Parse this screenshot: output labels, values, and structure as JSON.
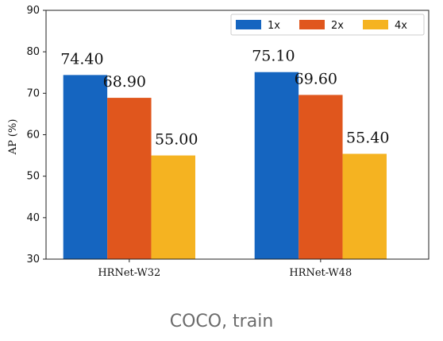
{
  "chart_data": {
    "type": "bar",
    "categories": [
      "HRNet-W32",
      "HRNet-W48"
    ],
    "series": [
      {
        "name": "1x",
        "values": [
          74.4,
          75.1
        ],
        "color": "#1565c0"
      },
      {
        "name": "2x",
        "values": [
          68.9,
          69.6
        ],
        "color": "#e0561d"
      },
      {
        "name": "4x",
        "values": [
          55.0,
          55.4
        ],
        "color": "#f5b321"
      }
    ],
    "data_labels": [
      "74.40",
      "75.10",
      "68.90",
      "69.60",
      "55.00",
      "55.40"
    ],
    "ylabel": "AP (%)",
    "ylim": [
      30,
      90
    ],
    "yticks": [
      30,
      40,
      50,
      60,
      70,
      80,
      90
    ],
    "grid": false,
    "legend_position": "top-right"
  },
  "caption": "COCO, train"
}
